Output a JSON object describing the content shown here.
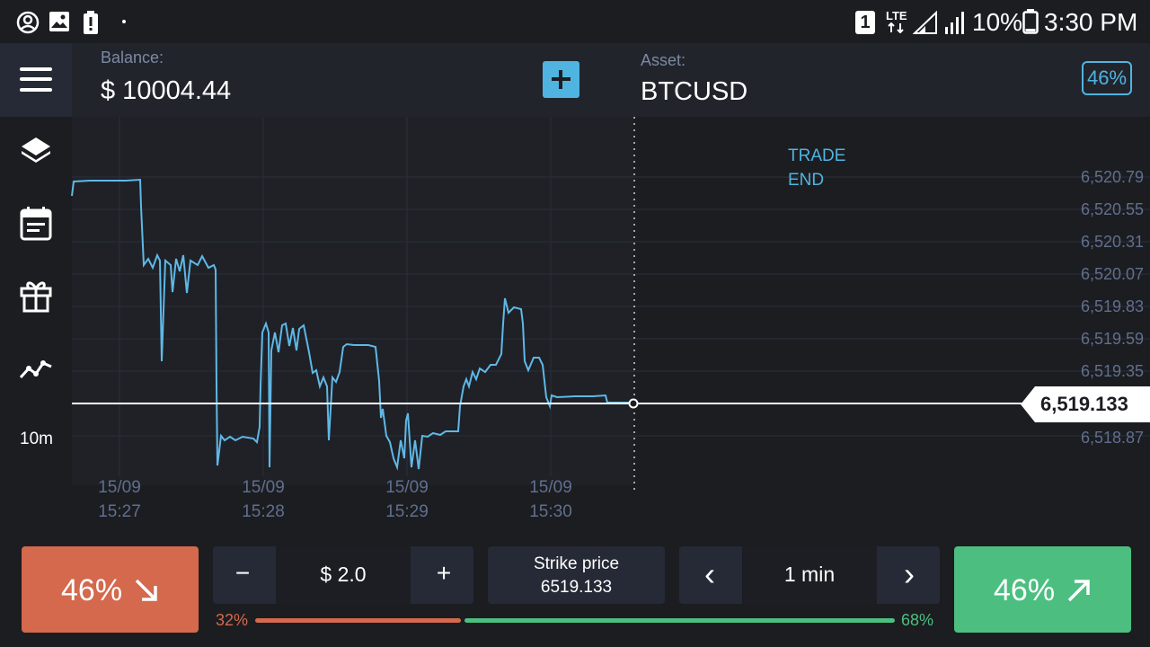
{
  "status_bar": {
    "icons": [
      "account-circle-icon",
      "image-icon",
      "battery-alert-icon",
      "dot-icon",
      "sim-1-icon",
      "lte-signal-icon",
      "signal-icon"
    ],
    "sim_label": "1",
    "lte_label": "LTE",
    "battery_pct": "10%",
    "time": "3:30 PM"
  },
  "header": {
    "balance_label": "Balance:",
    "balance_value": "$ 10004.44",
    "asset_label": "Asset:",
    "asset_value": "BTCUSD",
    "payout_badge": "46%"
  },
  "sidebar": {
    "items": [
      {
        "icon": "layers-icon"
      },
      {
        "icon": "calendar-icon"
      },
      {
        "icon": "gift-icon"
      },
      {
        "icon": "trend-line-icon"
      }
    ],
    "timeframe": "10m"
  },
  "chart": {
    "trade_end_line1": "TRADE",
    "trade_end_line2": "END",
    "current_price": "6,519.133",
    "y_ticks": [
      "6,520.79",
      "6,520.55",
      "6,520.31",
      "6,520.07",
      "6,519.83",
      "6,519.59",
      "6,519.35",
      "6,518.87"
    ],
    "x_ticks": [
      {
        "date": "15/09",
        "time": "15:27"
      },
      {
        "date": "15/09",
        "time": "15:28"
      },
      {
        "date": "15/09",
        "time": "15:29"
      },
      {
        "date": "15/09",
        "time": "15:30"
      }
    ],
    "line_color": "#5fb8e6"
  },
  "controls": {
    "down_pct": "46%",
    "up_pct": "46%",
    "minus": "−",
    "amount": "$ 2.0",
    "plus": "+",
    "strike_label": "Strike price",
    "strike_value": "6519.133",
    "prev": "‹",
    "duration": "1 min",
    "next": "›",
    "sentiment_down": "32%",
    "sentiment_up": "68%",
    "down_color": "#d4694d",
    "up_color": "#4cbf80"
  }
}
